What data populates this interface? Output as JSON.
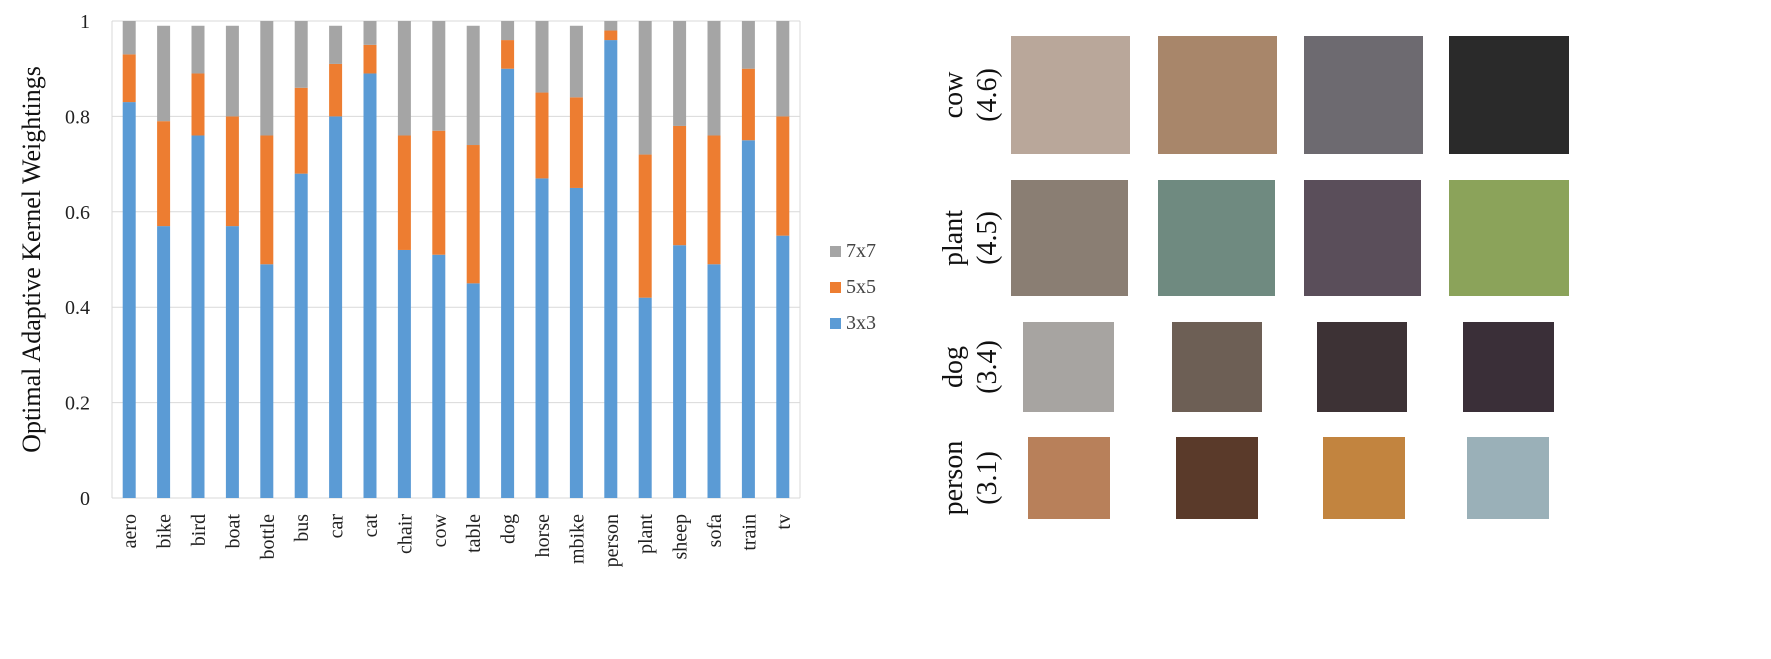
{
  "chart_data": {
    "type": "bar",
    "stacked": true,
    "ylabel": "Optimal Adaptive Kernel Weightings",
    "xlabel": "",
    "ylim": [
      0,
      1
    ],
    "yticks": [
      "0",
      "0.2",
      "0.4",
      "0.6",
      "0.8",
      "1"
    ],
    "ytick_values": [
      0,
      0.2,
      0.4,
      0.6,
      0.8,
      1
    ],
    "grid": "horizontal",
    "legend_position": "right",
    "categories": [
      "aero",
      "bike",
      "bird",
      "boat",
      "bottle",
      "bus",
      "car",
      "cat",
      "chair",
      "cow",
      "table",
      "dog",
      "horse",
      "mbike",
      "person",
      "plant",
      "sheep",
      "sofa",
      "train",
      "tv"
    ],
    "series": [
      {
        "name": "3x3",
        "color": "#5b9bd5",
        "values": [
          0.83,
          0.57,
          0.76,
          0.57,
          0.49,
          0.68,
          0.8,
          0.89,
          0.52,
          0.51,
          0.45,
          0.9,
          0.67,
          0.65,
          0.96,
          0.42,
          0.53,
          0.49,
          0.75,
          0.55
        ]
      },
      {
        "name": "5x5",
        "color": "#ed7d31",
        "values": [
          0.1,
          0.22,
          0.13,
          0.23,
          0.27,
          0.18,
          0.11,
          0.06,
          0.24,
          0.26,
          0.29,
          0.06,
          0.18,
          0.19,
          0.02,
          0.3,
          0.25,
          0.27,
          0.15,
          0.25
        ]
      },
      {
        "name": "7x7",
        "color": "#a5a5a5",
        "values": [
          0.07,
          0.2,
          0.1,
          0.19,
          0.24,
          0.14,
          0.08,
          0.05,
          0.24,
          0.23,
          0.25,
          0.04,
          0.15,
          0.15,
          0.02,
          0.28,
          0.22,
          0.24,
          0.1,
          0.2
        ]
      }
    ],
    "legend_order": [
      "7x7",
      "5x5",
      "3x3"
    ]
  },
  "examples": {
    "rows": [
      {
        "class": "cow",
        "score": "(4.6)",
        "tiles": [
          "#b9a79a",
          "#a8866a",
          "#6d6a70",
          "#2a2a2a"
        ]
      },
      {
        "class": "plant",
        "score": "(4.5)",
        "tiles": [
          "#8a7e73",
          "#6f8a80",
          "#5a4e5a",
          "#8ba35a"
        ]
      },
      {
        "class": "dog",
        "score": "(3.4)",
        "tiles": [
          "#a7a4a1",
          "#6d5f55",
          "#3d3235",
          "#3a2f38"
        ]
      },
      {
        "class": "person",
        "score": "(3.1)",
        "tiles": [
          "#b8805a",
          "#5a3a2a",
          "#c2843f",
          "#9ab0b8"
        ]
      }
    ]
  }
}
